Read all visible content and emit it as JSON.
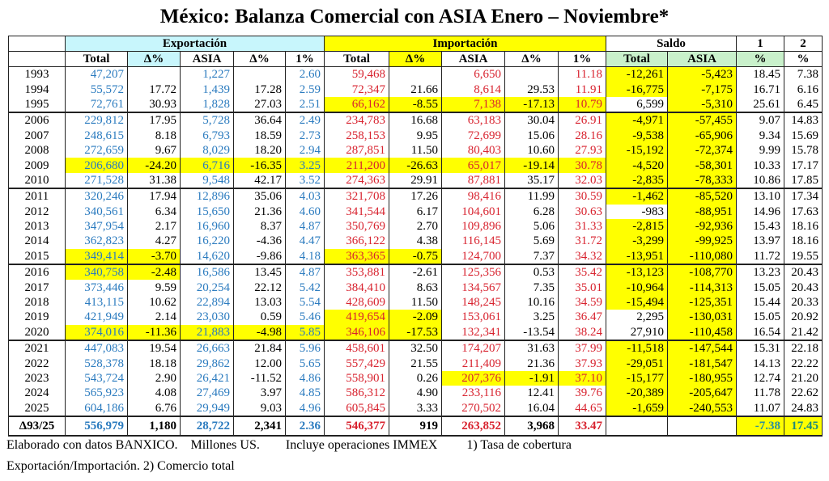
{
  "title": "México: Balanza Comercial con ASIA Enero – Noviembre*",
  "colors": {
    "highlight": "#ffff00",
    "export_header": "#c8f6fc",
    "saldo_header": "#c9f1cb",
    "export_text": "#2b7bbf",
    "import_text": "#d8232f"
  },
  "groups": {
    "export": "Exportación",
    "import": "Importación",
    "saldo": "Saldo",
    "c1": "1",
    "c2": "2"
  },
  "subheaders": [
    "Total",
    "Δ%",
    "ASIA",
    "Δ%",
    "1%",
    "Total",
    "Δ%",
    "ASIA",
    "Δ%",
    "1%",
    "Total",
    "ASIA",
    "%",
    "%"
  ],
  "rows": [
    {
      "year": "1993",
      "v": [
        "47,207",
        "",
        "1,227",
        "",
        "2.60",
        "59,468",
        "",
        "6,650",
        "",
        "11.18",
        "-12,261",
        "-5,423",
        "18.45",
        "7.38"
      ],
      "hl": [
        10,
        11
      ],
      "first": true
    },
    {
      "year": "1994",
      "v": [
        "55,572",
        "17.72",
        "1,439",
        "17.28",
        "2.59",
        "72,347",
        "21.66",
        "8,614",
        "29.53",
        "11.91",
        "-16,775",
        "-7,175",
        "16.71",
        "6.16"
      ],
      "hl": [
        10,
        11
      ]
    },
    {
      "year": "1995",
      "v": [
        "72,761",
        "30.93",
        "1,828",
        "27.03",
        "2.51",
        "66,162",
        "-8.55",
        "7,138",
        "-17.13",
        "10.79",
        "6,599",
        "-5,310",
        "25.61",
        "6.45"
      ],
      "hl": [
        5,
        6,
        7,
        8,
        9,
        11
      ]
    },
    {
      "year": "2006",
      "v": [
        "229,812",
        "17.95",
        "5,728",
        "36.64",
        "2.49",
        "234,783",
        "16.68",
        "63,183",
        "30.04",
        "26.91",
        "-4,971",
        "-57,455",
        "9.07",
        "14.83"
      ],
      "hl": [
        10,
        11
      ],
      "first": true
    },
    {
      "year": "2007",
      "v": [
        "248,615",
        "8.18",
        "6,793",
        "18.59",
        "2.73",
        "258,153",
        "9.95",
        "72,699",
        "15.06",
        "28.16",
        "-9,538",
        "-65,906",
        "9.34",
        "15.69"
      ],
      "hl": [
        10,
        11
      ]
    },
    {
      "year": "2008",
      "v": [
        "272,659",
        "9.67",
        "8,029",
        "18.20",
        "2.94",
        "287,851",
        "11.50",
        "80,403",
        "10.60",
        "27.93",
        "-15,192",
        "-72,374",
        "9.99",
        "15.78"
      ],
      "hl": [
        10,
        11
      ]
    },
    {
      "year": "2009",
      "v": [
        "206,680",
        "-24.20",
        "6,716",
        "-16.35",
        "3.25",
        "211,200",
        "-26.63",
        "65,017",
        "-19.14",
        "30.78",
        "-4,520",
        "-58,301",
        "10.33",
        "17.17"
      ],
      "hl": [
        0,
        1,
        2,
        3,
        4,
        5,
        6,
        7,
        8,
        9,
        10,
        11
      ]
    },
    {
      "year": "2010",
      "v": [
        "271,528",
        "31.38",
        "9,548",
        "42.17",
        "3.52",
        "274,363",
        "29.91",
        "87,881",
        "35.17",
        "32.03",
        "-2,835",
        "-78,333",
        "10.86",
        "17.85"
      ],
      "hl": [
        10,
        11
      ]
    },
    {
      "year": "2011",
      "v": [
        "320,246",
        "17.94",
        "12,896",
        "35.06",
        "4.03",
        "321,708",
        "17.26",
        "98,416",
        "11.99",
        "30.59",
        "-1,462",
        "-85,520",
        "13.10",
        "17.34"
      ],
      "hl": [
        10,
        11
      ],
      "first": true
    },
    {
      "year": "2012",
      "v": [
        "340,561",
        "6.34",
        "15,650",
        "21.36",
        "4.60",
        "341,544",
        "6.17",
        "104,601",
        "6.28",
        "30.63",
        "-983",
        "-88,951",
        "14.96",
        "17.63"
      ],
      "hl": [
        11
      ]
    },
    {
      "year": "2013",
      "v": [
        "347,954",
        "2.17",
        "16,960",
        "8.37",
        "4.87",
        "350,769",
        "2.70",
        "109,896",
        "5.06",
        "31.33",
        "-2,815",
        "-92,936",
        "15.43",
        "18.16"
      ],
      "hl": [
        10,
        11
      ]
    },
    {
      "year": "2014",
      "v": [
        "362,823",
        "4.27",
        "16,220",
        "-4.36",
        "4.47",
        "366,122",
        "4.38",
        "116,145",
        "5.69",
        "31.72",
        "-3,299",
        "-99,925",
        "13.97",
        "18.16"
      ],
      "hl": [
        10,
        11
      ]
    },
    {
      "year": "2015",
      "v": [
        "349,414",
        "-3.70",
        "14,620",
        "-9.86",
        "4.18",
        "363,365",
        "-0.75",
        "124,700",
        "7.37",
        "34.32",
        "-13,951",
        "-110,080",
        "11.72",
        "19.55"
      ],
      "hl": [
        0,
        1,
        5,
        6,
        10,
        11
      ]
    },
    {
      "year": "2016",
      "v": [
        "340,758",
        "-2.48",
        "16,586",
        "13.45",
        "4.87",
        "353,881",
        "-2.61",
        "125,356",
        "0.53",
        "35.42",
        "-13,123",
        "-108,770",
        "13.23",
        "20.43"
      ],
      "hl": [
        0,
        1,
        10,
        11
      ],
      "first": true
    },
    {
      "year": "2017",
      "v": [
        "373,446",
        "9.59",
        "20,254",
        "22.12",
        "5.42",
        "384,410",
        "8.63",
        "134,567",
        "7.35",
        "35.01",
        "-10,964",
        "-114,313",
        "15.05",
        "20.43"
      ],
      "hl": [
        10,
        11
      ]
    },
    {
      "year": "2018",
      "v": [
        "413,115",
        "10.62",
        "22,894",
        "13.03",
        "5.54",
        "428,609",
        "11.50",
        "148,245",
        "10.16",
        "34.59",
        "-15,494",
        "-125,351",
        "15.44",
        "20.33"
      ],
      "hl": [
        10,
        11
      ]
    },
    {
      "year": "2019",
      "v": [
        "421,949",
        "2.14",
        "23,030",
        "0.59",
        "5.46",
        "419,654",
        "-2.09",
        "153,061",
        "3.25",
        "36.47",
        "2,295",
        "-130,031",
        "15.05",
        "20.92"
      ],
      "hl": [
        5,
        6,
        11
      ]
    },
    {
      "year": "2020",
      "v": [
        "374,016",
        "-11.36",
        "21,883",
        "-4.98",
        "5.85",
        "346,106",
        "-17.53",
        "132,341",
        "-13.54",
        "38.24",
        "27,910",
        "-110,458",
        "16.54",
        "21.42"
      ],
      "hl": [
        0,
        1,
        2,
        3,
        4,
        5,
        6,
        11
      ]
    },
    {
      "year": "2021",
      "v": [
        "447,083",
        "19.54",
        "26,663",
        "21.84",
        "5.96",
        "458,601",
        "32.50",
        "174,207",
        "31.63",
        "37.99",
        "-11,518",
        "-147,544",
        "15.31",
        "22.18"
      ],
      "hl": [
        10,
        11
      ],
      "first": true
    },
    {
      "year": "2022",
      "v": [
        "528,378",
        "18.18",
        "29,862",
        "12.00",
        "5.65",
        "557,429",
        "21.55",
        "211,409",
        "21.36",
        "37.93",
        "-29,051",
        "-181,547",
        "14.13",
        "22.22"
      ],
      "hl": [
        10,
        11
      ]
    },
    {
      "year": "2023",
      "v": [
        "543,724",
        "2.90",
        "26,421",
        "-11.52",
        "4.86",
        "558,901",
        "0.26",
        "207,376",
        "-1.91",
        "37.10",
        "-15,177",
        "-180,955",
        "12.74",
        "21.20"
      ],
      "hl": [
        7,
        8,
        9,
        10,
        11
      ]
    },
    {
      "year": "2024",
      "v": [
        "565,923",
        "4.08",
        "27,469",
        "3.97",
        "4.85",
        "586,312",
        "4.90",
        "233,116",
        "12.41",
        "39.76",
        "-20,389",
        "-205,647",
        "11.78",
        "22.62"
      ],
      "hl": [
        10,
        11
      ]
    },
    {
      "year": "2025",
      "v": [
        "604,186",
        "6.76",
        "29,949",
        "9.03",
        "4.96",
        "605,845",
        "3.33",
        "270,502",
        "16.04",
        "44.65",
        "-1,659",
        "-240,553",
        "11.07",
        "24.83"
      ],
      "hl": [
        10,
        11
      ]
    }
  ],
  "total": {
    "year": "Δ93/25",
    "v": [
      "556,979",
      "1,180",
      "28,722",
      "2,341",
      "2.36",
      "546,377",
      "919",
      "263,852",
      "3,968",
      "33.47",
      "",
      "",
      "-7.38",
      "17.45"
    ],
    "hl": [
      12,
      13
    ]
  },
  "footer": {
    "line1": "Elaborado con datos BANXICO.    Millones US.        Incluye operaciones IMMEX         1) Tasa de cobertura",
    "line2": "Exportación/Importación. 2) Comercio total"
  }
}
